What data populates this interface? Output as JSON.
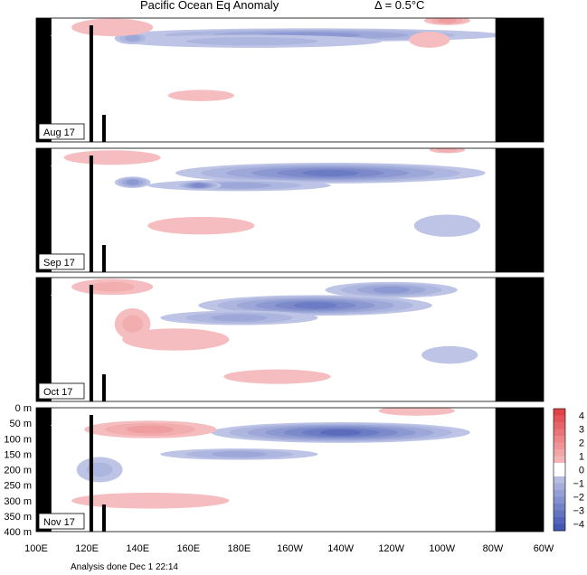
{
  "title": "Pacific Ocean Eq Anomaly",
  "interval_text": "Δ = 0.5°C",
  "footer": "Analysis done Dec 1 22:14",
  "colors": {
    "warm": "#e03a40",
    "cool": "#3a4fb0",
    "land": "#000000"
  },
  "chart_data": {
    "type": "heatmap",
    "title": "Pacific Ocean Eq Anomaly",
    "contour_interval": "0.5°C",
    "x_ticks": [
      "100E",
      "120E",
      "140E",
      "160E",
      "180E",
      "160W",
      "140W",
      "120W",
      "100W",
      "80W",
      "60W"
    ],
    "y_ticks": [
      "0 m",
      "50 m",
      "100 m",
      "150 m",
      "200 m",
      "250 m",
      "300 m",
      "350 m",
      "400 m"
    ],
    "ylim": [
      0,
      400
    ],
    "colorbar": {
      "ticks": [
        "4",
        "3",
        "2",
        "1",
        "0",
        "−1",
        "−2",
        "−3",
        "−4"
      ],
      "range": [
        -4.5,
        4.5
      ]
    },
    "panels": [
      {
        "label": "Aug 17",
        "features": [
          {
            "type": "cool",
            "lon": 208,
            "depth": 55,
            "lon_w": 75,
            "depth_h": 32,
            "anomaly": -2.0
          },
          {
            "type": "cool",
            "lon": 185,
            "depth": 75,
            "lon_w": 50,
            "depth_h": 30,
            "anomaly": -1.0
          },
          {
            "type": "cool",
            "lon": 138,
            "depth": 65,
            "lon_w": 6,
            "depth_h": 28,
            "anomaly": -1.5
          },
          {
            "type": "warm",
            "lon": 262,
            "depth": 8,
            "lon_w": 8,
            "depth_h": 18,
            "anomaly": 1.5
          },
          {
            "type": "warm",
            "lon": 130,
            "depth": 30,
            "lon_w": 15,
            "depth_h": 45,
            "anomaly": 0.5
          },
          {
            "type": "warm",
            "lon": 255,
            "depth": 70,
            "lon_w": 7,
            "depth_h": 40,
            "anomaly": 0.5
          },
          {
            "type": "warm",
            "lon": 165,
            "depth": 250,
            "lon_w": 12,
            "depth_h": 25,
            "anomaly": 0.5
          }
        ]
      },
      {
        "label": "Sep 17",
        "features": [
          {
            "type": "cool",
            "lon": 216,
            "depth": 80,
            "lon_w": 60,
            "depth_h": 55,
            "anomaly": -3.0
          },
          {
            "type": "cool",
            "lon": 180,
            "depth": 120,
            "lon_w": 35,
            "depth_h": 25,
            "anomaly": -1.5
          },
          {
            "type": "cool",
            "lon": 164,
            "depth": 120,
            "lon_w": 8,
            "depth_h": 15,
            "anomaly": -2.5
          },
          {
            "type": "cool",
            "lon": 138,
            "depth": 110,
            "lon_w": 6,
            "depth_h": 25,
            "anomaly": -2.0
          },
          {
            "type": "cool",
            "lon": 262,
            "depth": 250,
            "lon_w": 12,
            "depth_h": 60,
            "anomaly": -0.5
          },
          {
            "type": "warm",
            "lon": 165,
            "depth": 250,
            "lon_w": 20,
            "depth_h": 45,
            "anomaly": 0.5
          },
          {
            "type": "warm",
            "lon": 130,
            "depth": 30,
            "lon_w": 18,
            "depth_h": 35,
            "anomaly": 0.5
          },
          {
            "type": "warm",
            "lon": 262,
            "depth": 5,
            "lon_w": 6,
            "depth_h": 10,
            "anomaly": 1.0
          }
        ]
      },
      {
        "label": "Oct 17",
        "features": [
          {
            "type": "cool",
            "lon": 210,
            "depth": 90,
            "lon_w": 45,
            "depth_h": 55,
            "anomaly": -3.0
          },
          {
            "type": "cool",
            "lon": 240,
            "depth": 40,
            "lon_w": 25,
            "depth_h": 40,
            "anomaly": -2.0
          },
          {
            "type": "cool",
            "lon": 180,
            "depth": 130,
            "lon_w": 30,
            "depth_h": 35,
            "anomaly": -1.5
          },
          {
            "type": "cool",
            "lon": 263,
            "depth": 250,
            "lon_w": 10,
            "depth_h": 45,
            "anomaly": -0.5
          },
          {
            "type": "warm",
            "lon": 155,
            "depth": 200,
            "lon_w": 20,
            "depth_h": 60,
            "anomaly": 0.5
          },
          {
            "type": "warm",
            "lon": 138,
            "depth": 150,
            "lon_w": 6,
            "depth_h": 90,
            "anomaly": 1.0
          },
          {
            "type": "warm",
            "lon": 130,
            "depth": 30,
            "lon_w": 15,
            "depth_h": 40,
            "anomaly": 1.0
          },
          {
            "type": "warm",
            "lon": 195,
            "depth": 320,
            "lon_w": 20,
            "depth_h": 35,
            "anomaly": 0.5
          }
        ]
      },
      {
        "label": "Nov 17",
        "features": [
          {
            "type": "cool",
            "lon": 220,
            "depth": 80,
            "lon_w": 50,
            "depth_h": 55,
            "anomaly": -3.5
          },
          {
            "type": "cool",
            "lon": 180,
            "depth": 150,
            "lon_w": 30,
            "depth_h": 25,
            "anomaly": -1.5
          },
          {
            "type": "cool",
            "lon": 125,
            "depth": 200,
            "lon_w": 8,
            "depth_h": 70,
            "anomaly": -1.0
          },
          {
            "type": "warm",
            "lon": 145,
            "depth": 70,
            "lon_w": 25,
            "depth_h": 45,
            "anomaly": 1.5
          },
          {
            "type": "warm",
            "lon": 145,
            "depth": 300,
            "lon_w": 30,
            "depth_h": 40,
            "anomaly": 0.5
          },
          {
            "type": "warm",
            "lon": 250,
            "depth": 10,
            "lon_w": 14,
            "depth_h": 20,
            "anomaly": 0.5
          }
        ]
      }
    ]
  }
}
